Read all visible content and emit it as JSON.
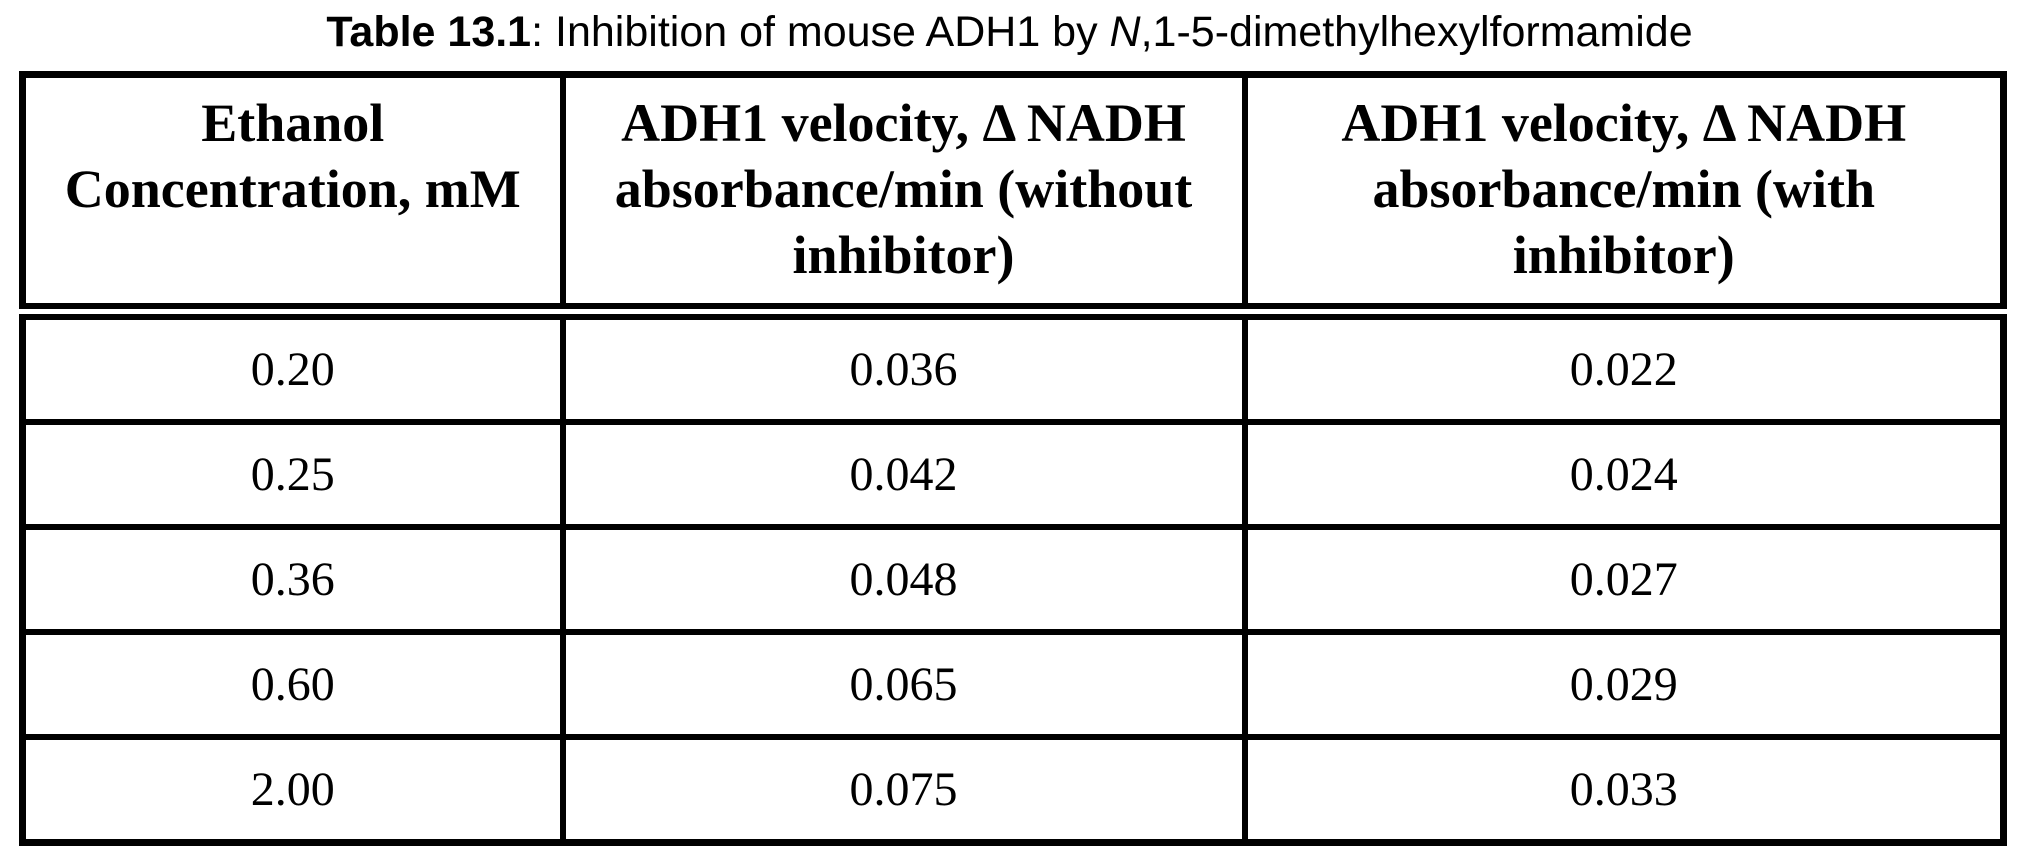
{
  "caption": {
    "label_bold": "Table 13.1",
    "separator": ": ",
    "text_regular": "Inhibition of mouse ADH1 by ",
    "compound_italic_prefix": "N",
    "compound_rest": ",1-5-dimethylhexylformamide"
  },
  "table": {
    "headers": [
      [
        "Ethanol",
        "Concentration, mM"
      ],
      [
        "ADH1 velocity, Δ NADH",
        "absorbance/min (without",
        "inhibitor)"
      ],
      [
        "ADH1 velocity, Δ NADH",
        "absorbance/min (with",
        "inhibitor)"
      ]
    ],
    "rows": [
      [
        "0.20",
        "0.036",
        "0.022"
      ],
      [
        "0.25",
        "0.042",
        "0.024"
      ],
      [
        "0.36",
        "0.048",
        "0.027"
      ],
      [
        "0.60",
        "0.065",
        "0.029"
      ],
      [
        "2.00",
        "0.075",
        "0.033"
      ]
    ]
  },
  "chart_data": {
    "type": "table",
    "title": "Table 13.1: Inhibition of mouse ADH1 by N,1-5-dimethylhexylformamide",
    "columns": [
      "Ethanol Concentration, mM",
      "ADH1 velocity, Δ NADH absorbance/min (without inhibitor)",
      "ADH1 velocity, Δ NADH absorbance/min (with inhibitor)"
    ],
    "ethanol_concentration_mM": [
      0.2,
      0.25,
      0.36,
      0.6,
      2.0
    ],
    "velocity_without_inhibitor": [
      0.036,
      0.042,
      0.048,
      0.065,
      0.075
    ],
    "velocity_with_inhibitor": [
      0.022,
      0.024,
      0.027,
      0.029,
      0.033
    ]
  },
  "colors": {
    "text": "#000000",
    "background": "#ffffff",
    "border": "#000000"
  }
}
